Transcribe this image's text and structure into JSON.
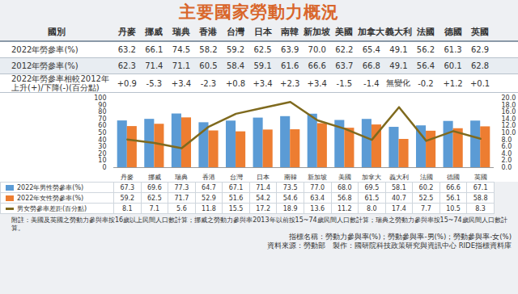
{
  "title": "主要國家勞動力概況",
  "summary_table": {
    "header": [
      "國別",
      "丹麥",
      "挪威",
      "瑞典",
      "香港",
      "台灣",
      "日本",
      "南韓",
      "新加坡",
      "美國",
      "加拿大",
      "義大利",
      "法國",
      "德國",
      "英國"
    ],
    "rows": [
      {
        "label": "2022年勞參率(%)",
        "cells": [
          "63.2",
          "66.1",
          "74.5",
          "58.2",
          "59.2",
          "62.5",
          "63.9",
          "70.0",
          "62.2",
          "65.4",
          "49.1",
          "56.2",
          "61.3",
          "62.9"
        ]
      },
      {
        "label": "2012年勞參率(%)",
        "cells": [
          "62.3",
          "71.4",
          "71.1",
          "60.5",
          "58.4",
          "59.1",
          "61.6",
          "66.6",
          "63.7",
          "66.8",
          "49.1",
          "56.4",
          "60.1",
          "62.8"
        ]
      },
      {
        "label": "2022年勞參率相較2012年上升(+)/下降(-)(百分點)",
        "cells": [
          "+0.9",
          "-5.3",
          "+3.4",
          "-2.3",
          "+0.8",
          "+3.4",
          "+2.3",
          "+3.4",
          "-1.5",
          "-1.4",
          "無變化",
          "-0.2",
          "+1.2",
          "+0.1"
        ]
      }
    ]
  },
  "chart_data": {
    "type": "bar",
    "categories": [
      "丹麥",
      "挪威",
      "瑞典",
      "香港",
      "台灣",
      "日本",
      "南韓",
      "新加坡",
      "美國",
      "加拿大",
      "義大利",
      "法國",
      "德國",
      "英國"
    ],
    "ylim": [
      0,
      100
    ],
    "yticks": [
      0,
      10,
      20,
      30,
      40,
      50,
      60,
      70,
      80,
      90,
      100
    ],
    "y2lim": [
      0,
      20
    ],
    "y2ticks": [
      {
        "value": 0,
        "label": "0.0"
      },
      {
        "value": 2,
        "label": "2.0"
      },
      {
        "value": 4,
        "label": "4.0"
      },
      {
        "value": 6,
        "label": "6.0"
      },
      {
        "value": 8,
        "label": "8.0"
      },
      {
        "value": 10,
        "label": "10.0"
      },
      {
        "value": 12,
        "label": "12.0"
      },
      {
        "value": 14,
        "label": "14.0"
      },
      {
        "value": 16,
        "label": "16.0"
      },
      {
        "value": 18,
        "label": "18.0"
      },
      {
        "value": 20,
        "label": "20.0"
      }
    ],
    "grid": false,
    "series": [
      {
        "name": "2022年男性勞參率(%)",
        "type": "bar",
        "color": "#5b9bd5",
        "values": [
          67.3,
          69.6,
          77.3,
          64.7,
          67.1,
          71.4,
          73.5,
          77.0,
          68.0,
          69.5,
          58.1,
          60.2,
          66.6,
          67.1
        ],
        "value_labels": [
          "67.3",
          "69.6",
          "77.3",
          "64.7",
          "67.1",
          "71.4",
          "73.5",
          "77.0",
          "68.0",
          "69.5",
          "58.1",
          "60.2",
          "66.6",
          "67.1"
        ]
      },
      {
        "name": "2022年女性勞參率(%)",
        "type": "bar",
        "color": "#ed7d31",
        "values": [
          59.2,
          62.5,
          71.7,
          52.9,
          51.6,
          54.2,
          54.6,
          63.4,
          56.8,
          61.5,
          40.7,
          52.5,
          56.1,
          58.8
        ],
        "value_labels": [
          "59.2",
          "62.5",
          "71.7",
          "52.9",
          "51.6",
          "54.2",
          "54.6",
          "63.4",
          "56.8",
          "61.5",
          "40.7",
          "52.5",
          "56.1",
          "58.8"
        ]
      },
      {
        "name": "男女勞參率差距(百分點)",
        "type": "line",
        "axis": "y2",
        "color": "#7f6a1e",
        "values": [
          8.1,
          7.1,
          5.6,
          11.8,
          15.5,
          17.2,
          18.9,
          13.6,
          11.2,
          8.0,
          17.4,
          7.7,
          10.5,
          8.3
        ],
        "value_labels": [
          "8.1",
          "7.1",
          "5.6",
          "11.8",
          "15.5",
          "17.2",
          "18.9",
          "13.6",
          "11.2",
          "8.0",
          "17.4",
          "7.7",
          "10.5",
          "8.3"
        ]
      }
    ]
  },
  "notes": {
    "footnote": "附註：美國及英國之勞動力參與率按16歲以上民間人口數計算；挪威之勞動力參與率2013年以前按15~74歲民間人口數計算；瑞典之勞動力參與率按15~74歲民間人口數計算。",
    "indicator": "指標名稱：勞動力參與率(%)；勞動參與率-男(%)；勞動參與率-女(%)",
    "source": "資料來源：勞動部　製作：國研院科技政策研究與資訊中心 RIDE指標資料庫"
  }
}
